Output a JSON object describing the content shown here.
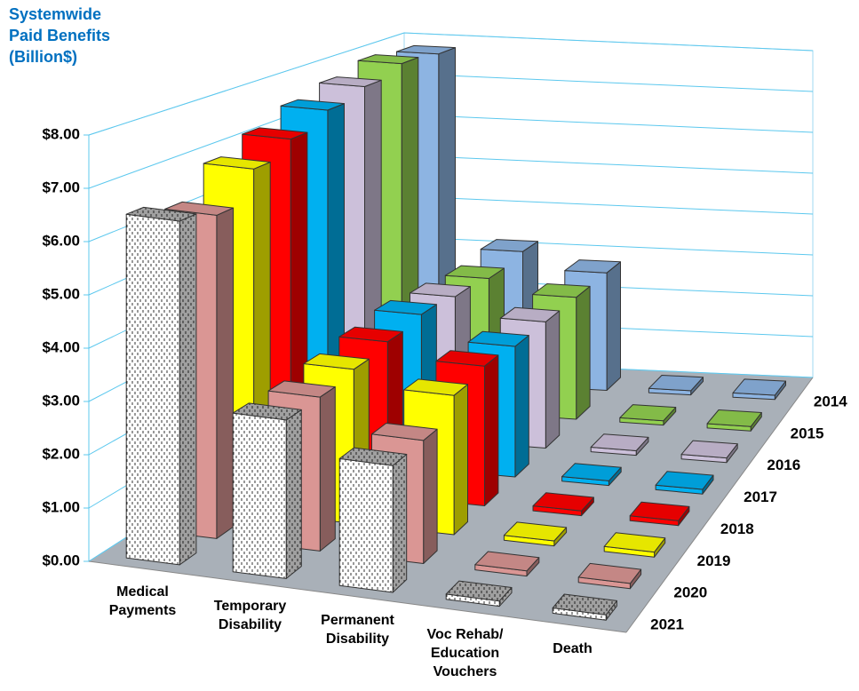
{
  "chart_data": {
    "type": "bar3d",
    "title": "Systemwide Paid Benefits (Billion$)",
    "categories": [
      "Medical Payments",
      "Temporary Disability",
      "Permanent Disability",
      "Voc Rehab/ Education Vouchers",
      "Death"
    ],
    "series": [
      {
        "name": "2014",
        "color": "#8db4e2",
        "values": [
          7.8,
          3.2,
          2.8,
          0.1,
          0.1
        ]
      },
      {
        "name": "2015",
        "color": "#92d050",
        "values": [
          7.9,
          3.1,
          2.8,
          0.1,
          0.1
        ]
      },
      {
        "name": "2016",
        "color": "#ccc0da",
        "values": [
          7.7,
          3.2,
          2.8,
          0.1,
          0.1
        ]
      },
      {
        "name": "2017",
        "color": "#00b0f0",
        "values": [
          7.5,
          3.3,
          2.8,
          0.1,
          0.1
        ]
      },
      {
        "name": "2018",
        "color": "#ff0000",
        "values": [
          7.2,
          3.2,
          2.9,
          0.1,
          0.1
        ]
      },
      {
        "name": "2019",
        "color": "#ffff00",
        "values": [
          6.9,
          3.1,
          2.8,
          0.1,
          0.1
        ]
      },
      {
        "name": "2020",
        "color": "#da9694",
        "values": [
          6.3,
          3.0,
          2.4,
          0.1,
          0.1
        ]
      },
      {
        "name": "2021",
        "color": "#ffffff",
        "pattern": "dashes",
        "values": [
          6.5,
          3.0,
          2.4,
          0.1,
          0.1
        ]
      }
    ],
    "ylim": [
      0,
      8
    ],
    "yticks": [
      {
        "value": 0,
        "label": "$0.00"
      },
      {
        "value": 1,
        "label": "$1.00"
      },
      {
        "value": 2,
        "label": "$2.00"
      },
      {
        "value": 3,
        "label": "$3.00"
      },
      {
        "value": 4,
        "label": "$4.00"
      },
      {
        "value": 5,
        "label": "$5.00"
      },
      {
        "value": 6,
        "label": "$6.00"
      },
      {
        "value": 7,
        "label": "$7.00"
      },
      {
        "value": 8,
        "label": "$8.00"
      }
    ],
    "grid": true
  }
}
